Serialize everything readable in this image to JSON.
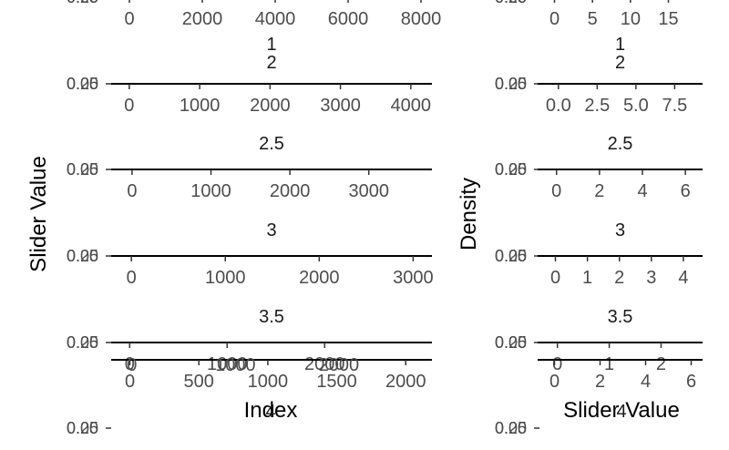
{
  "chart_data": {
    "type": "line",
    "description_free": true,
    "panels_left": {
      "ylabel": "Slider Value",
      "xlabel": "Index",
      "y_tick_labels": [
        "0.00",
        "0.25"
      ],
      "rows": [
        {
          "strip": [],
          "ticks": [
            0,
            2000,
            4000,
            6000,
            8000
          ],
          "xlim": [
            -100,
            8300
          ]
        },
        {
          "strip": [
            "1",
            "2"
          ],
          "ticks": [
            0,
            1000,
            2000,
            3000,
            4000
          ],
          "xlim": [
            -50,
            4300
          ]
        },
        {
          "strip": [
            "2.5"
          ],
          "ticks": [
            0,
            1000,
            2000,
            3000
          ],
          "xlim": [
            -80,
            3800
          ]
        },
        {
          "strip": [
            "3"
          ],
          "ticks": [
            0,
            1000,
            2000,
            3000
          ],
          "xlim": [
            -60,
            3200
          ]
        },
        {
          "strip": [
            "3.5"
          ],
          "ticks": [
            0,
            1000,
            2000
          ],
          "xlim": [
            -40,
            3100
          ]
        },
        {
          "strip": [],
          "ticks": [
            0,
            500,
            1000,
            1500,
            2000
          ],
          "xlim": [
            -30,
            2190
          ],
          "overlay_ticks": [
            0,
            1000,
            2000
          ]
        }
      ],
      "bottom_strip": "4"
    },
    "panels_right": {
      "ylabel": "Density",
      "xlabel": "Slider Value",
      "y_tick_labels": [
        "0.00",
        "0.25"
      ],
      "rows": [
        {
          "strip": [],
          "ticks": [
            0,
            5,
            10,
            15
          ],
          "xlim": [
            -0.3,
            19.5
          ]
        },
        {
          "strip": [
            "1",
            "2"
          ],
          "ticks": [
            "0.0",
            "2.5",
            "5.0",
            "7.5"
          ],
          "xlim": [
            -0.4,
            9.3
          ]
        },
        {
          "strip": [
            "2.5"
          ],
          "ticks": [
            0,
            2,
            4,
            6
          ],
          "xlim": [
            -0.2,
            6.8
          ]
        },
        {
          "strip": [
            "3"
          ],
          "ticks": [
            0,
            1,
            2,
            3,
            4
          ],
          "xlim": [
            -0.1,
            4.6
          ]
        },
        {
          "strip": [
            "3.5"
          ],
          "ticks": [
            0,
            1,
            2
          ],
          "xlim": [
            -0.1,
            2.8
          ]
        },
        {
          "strip": [],
          "ticks": [
            0,
            2,
            4,
            6
          ],
          "xlim": [
            -0.1,
            6.5
          ]
        }
      ],
      "bottom_strip": "4"
    }
  }
}
